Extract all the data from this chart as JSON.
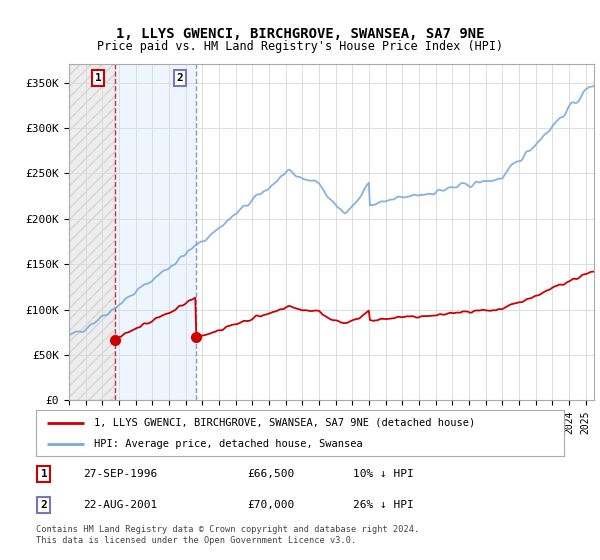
{
  "title": "1, LLYS GWENCI, BIRCHGROVE, SWANSEA, SA7 9NE",
  "subtitle": "Price paid vs. HM Land Registry's House Price Index (HPI)",
  "ylim": [
    0,
    370000
  ],
  "yticks": [
    0,
    50000,
    100000,
    150000,
    200000,
    250000,
    300000,
    350000
  ],
  "ytick_labels": [
    "£0",
    "£50K",
    "£100K",
    "£150K",
    "£200K",
    "£250K",
    "£300K",
    "£350K"
  ],
  "sale1_date_num": 1996.74,
  "sale1_price": 66500,
  "sale1_label": "27-SEP-1996",
  "sale1_price_str": "£66,500",
  "sale1_hpi_str": "10% ↓ HPI",
  "sale2_date_num": 2001.64,
  "sale2_price": 70000,
  "sale2_label": "22-AUG-2001",
  "sale2_price_str": "£70,000",
  "sale2_hpi_str": "26% ↓ HPI",
  "hpi_color": "#7aaadd",
  "price_color": "#cc0000",
  "vline1_color": "#cc0000",
  "vline2_color": "#7777bb",
  "legend_label_price": "1, LLYS GWENCI, BIRCHGROVE, SWANSEA, SA7 9NE (detached house)",
  "legend_label_hpi": "HPI: Average price, detached house, Swansea",
  "footnote": "Contains HM Land Registry data © Crown copyright and database right 2024.\nThis data is licensed under the Open Government Licence v3.0.",
  "background_color": "#ffffff",
  "plot_bg_color": "#ffffff",
  "grid_color": "#dddddd",
  "xmin": 1994.0,
  "xmax": 2025.5
}
